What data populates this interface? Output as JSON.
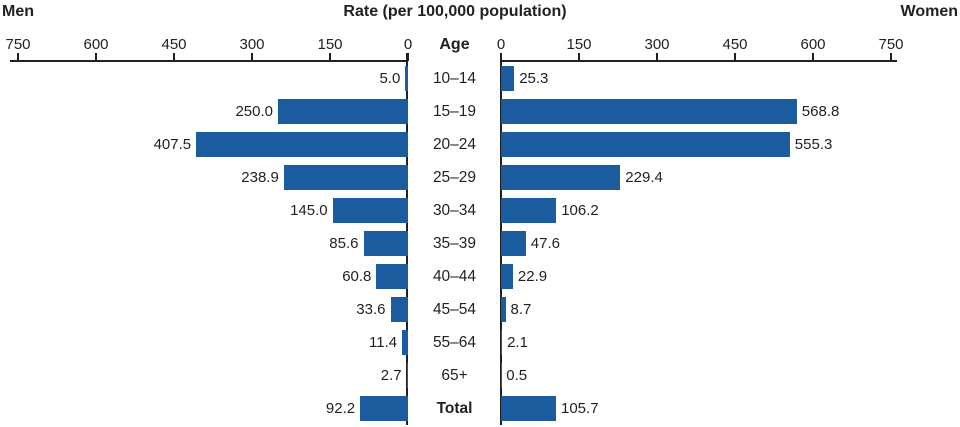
{
  "chart_data": {
    "type": "bar",
    "variant": "population-pyramid",
    "title": "Rate (per 100,000 population)",
    "left_label": "Men",
    "right_label": "Women",
    "center_label": "Age",
    "axis_max": 750,
    "axis_ticks": [
      0,
      150,
      300,
      450,
      600,
      750
    ],
    "bar_color": "#1a5c9e",
    "axis_color": "#231f20",
    "legend_position": "none",
    "grid": false,
    "categories": [
      "10–14",
      "15–19",
      "20–24",
      "25–29",
      "30–34",
      "35–39",
      "40–44",
      "45–54",
      "55–64",
      "65+",
      "Total"
    ],
    "series": [
      {
        "name": "Men",
        "values": [
          5.0,
          250.0,
          407.5,
          238.9,
          145.0,
          85.6,
          60.8,
          33.6,
          11.4,
          2.7,
          92.2
        ]
      },
      {
        "name": "Women",
        "values": [
          25.3,
          568.8,
          555.3,
          229.4,
          106.2,
          47.6,
          22.9,
          8.7,
          2.1,
          0.5,
          105.7
        ]
      }
    ]
  }
}
